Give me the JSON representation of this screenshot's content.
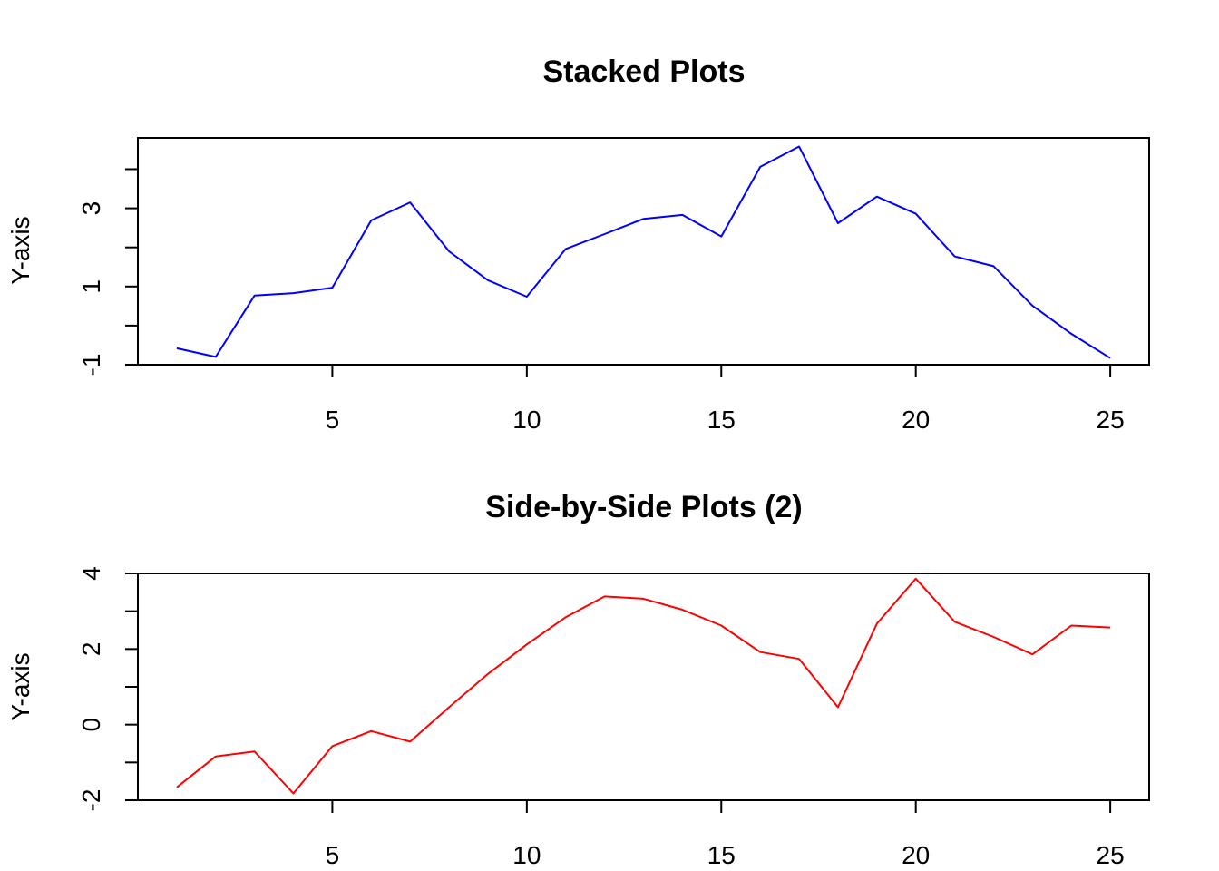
{
  "chart_data": [
    {
      "type": "line",
      "title": "Stacked Plots",
      "xlabel": "",
      "ylabel": "Y-axis",
      "xlim": [
        0,
        26
      ],
      "ylim": [
        -1,
        4.8
      ],
      "x_ticks": [
        5,
        10,
        15,
        20,
        25
      ],
      "x_tick_labels": [
        "5",
        "10",
        "15",
        "20",
        "25"
      ],
      "y_ticks": [
        -1,
        0,
        1,
        2,
        3,
        4
      ],
      "y_tick_labels": [
        "-1",
        "",
        "1",
        "",
        "3",
        ""
      ],
      "grid": false,
      "color": "#0000ff",
      "series": [
        {
          "x": [
            1,
            2,
            3,
            4,
            5,
            6,
            7,
            8,
            9,
            10,
            11,
            12,
            13,
            14,
            15,
            16,
            17,
            18,
            19,
            20,
            21,
            22,
            23,
            24,
            25
          ],
          "values": [
            -0.58,
            -0.8,
            0.77,
            0.83,
            0.97,
            2.69,
            3.15,
            1.9,
            1.16,
            0.74,
            1.96,
            2.34,
            2.73,
            2.83,
            2.28,
            4.06,
            4.58,
            2.62,
            3.3,
            2.86,
            1.77,
            1.52,
            0.51,
            -0.21,
            -0.83
          ]
        }
      ]
    },
    {
      "type": "line",
      "title": "Side-by-Side Plots (2)",
      "xlabel": "",
      "ylabel": "Y-axis",
      "xlim": [
        0,
        26
      ],
      "ylim": [
        -2,
        4
      ],
      "x_ticks": [
        5,
        10,
        15,
        20,
        25
      ],
      "x_tick_labels": [
        "5",
        "10",
        "15",
        "20",
        "25"
      ],
      "y_ticks": [
        -2,
        -1,
        0,
        1,
        2,
        3,
        4
      ],
      "y_tick_labels": [
        "-2",
        "",
        "0",
        "",
        "2",
        "",
        "4"
      ],
      "grid": false,
      "color": "#ff0000",
      "series": [
        {
          "x": [
            1,
            2,
            3,
            4,
            5,
            6,
            7,
            8,
            9,
            10,
            11,
            12,
            13,
            14,
            15,
            16,
            17,
            18,
            19,
            20,
            21,
            22,
            23,
            24,
            25
          ],
          "values": [
            -1.66,
            -0.84,
            -0.71,
            -1.82,
            -0.57,
            -0.17,
            -0.45,
            0.46,
            1.34,
            2.12,
            2.84,
            3.39,
            3.33,
            3.04,
            2.62,
            1.92,
            1.74,
            0.46,
            2.67,
            3.86,
            2.72,
            2.32,
            1.86,
            2.62,
            2.57
          ]
        }
      ]
    }
  ]
}
